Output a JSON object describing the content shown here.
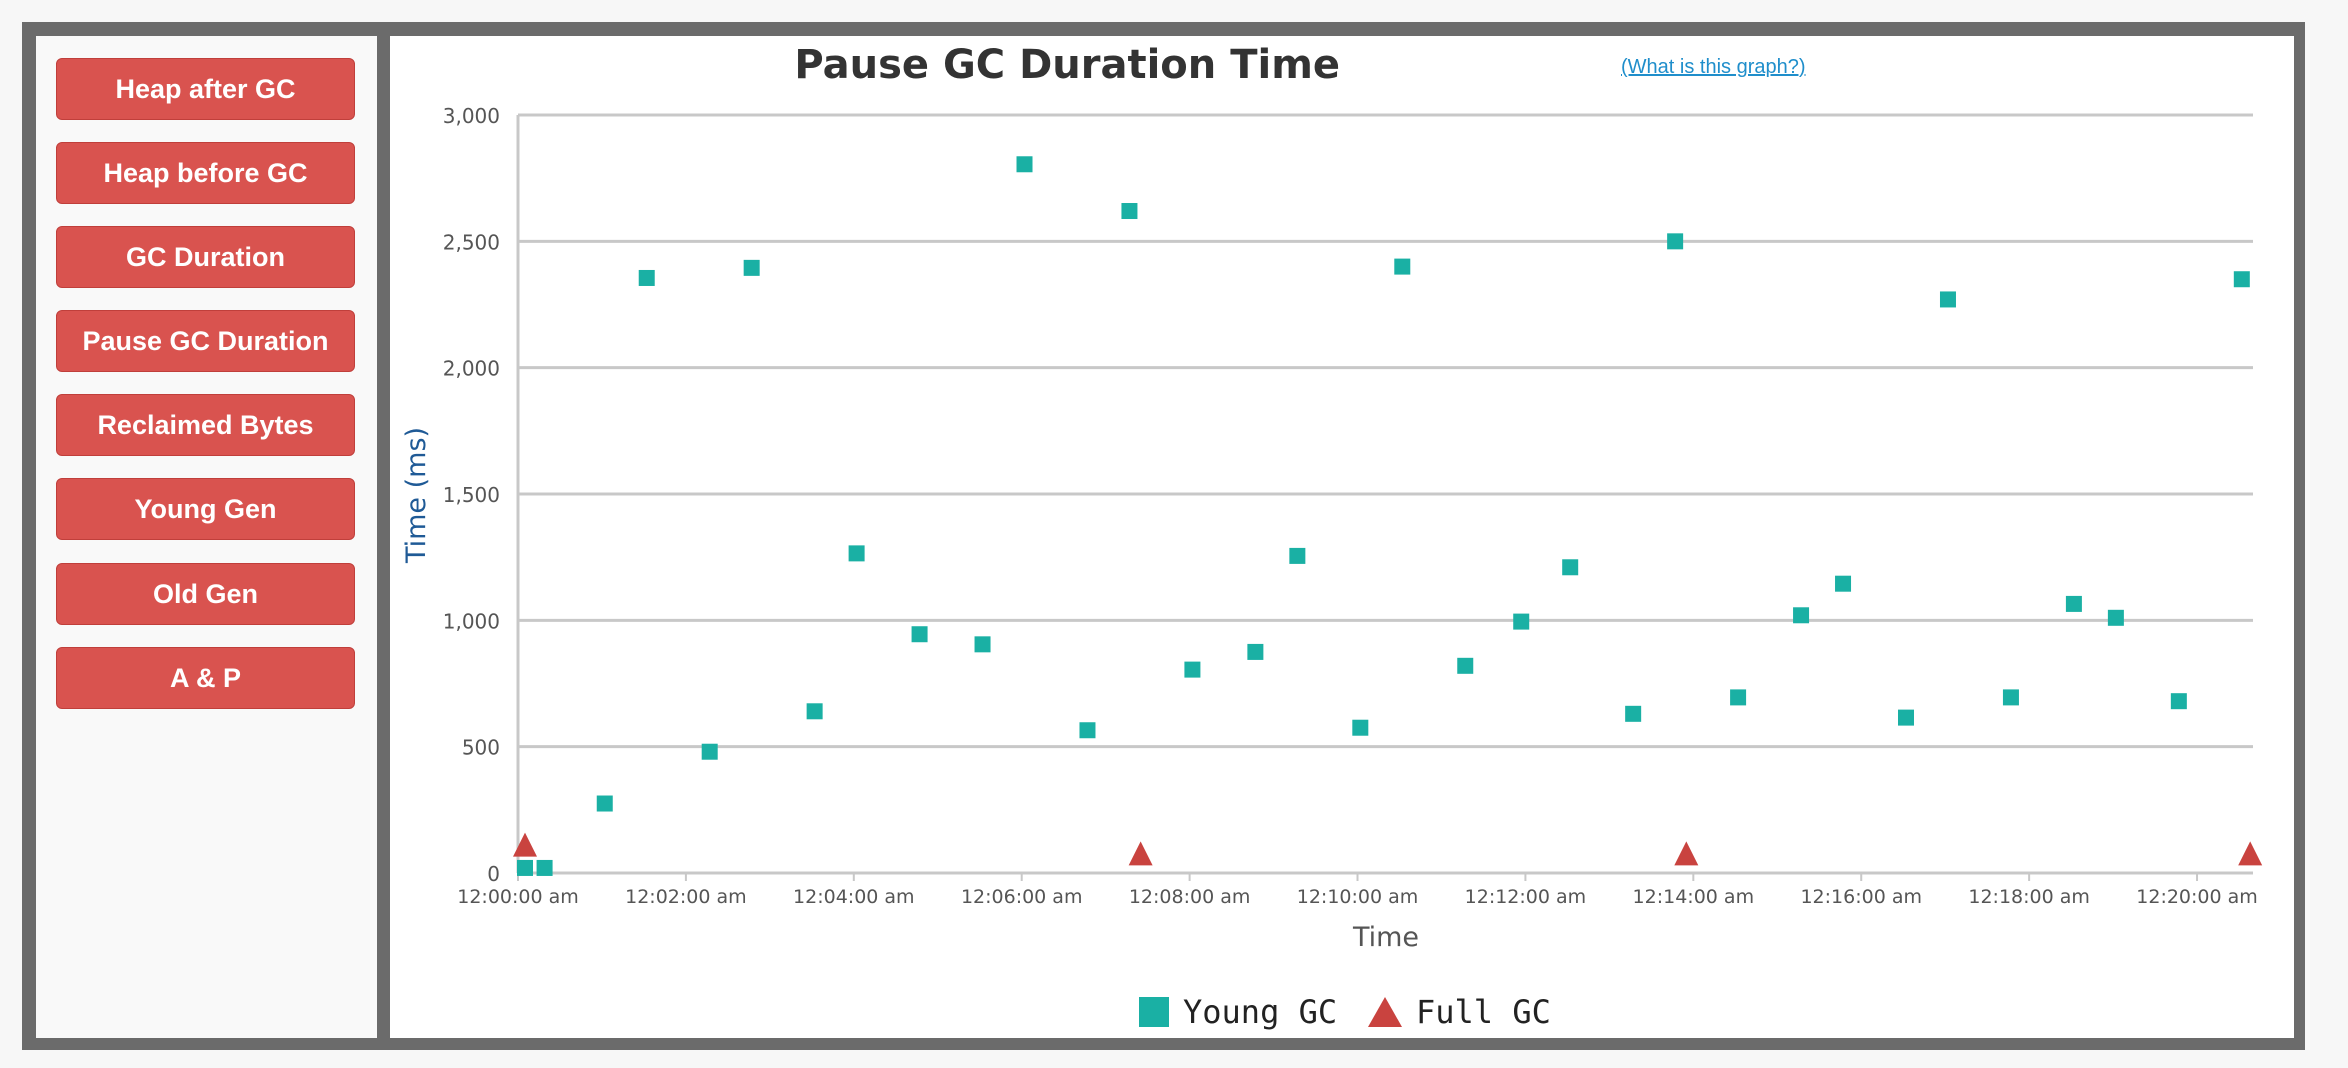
{
  "sidebar": {
    "buttons": [
      {
        "label": "Heap after GC"
      },
      {
        "label": "Heap before GC"
      },
      {
        "label": "GC Duration"
      },
      {
        "label": "Pause GC Duration"
      },
      {
        "label": "Reclaimed Bytes"
      },
      {
        "label": "Young Gen"
      },
      {
        "label": "Old Gen"
      },
      {
        "label": "A & P"
      }
    ]
  },
  "help_link": "(What is this graph?)",
  "colors": {
    "button": "#d9534f",
    "young": "#1ab0a4",
    "full": "#c9433f",
    "frame": "#6b6b6b"
  },
  "chart_data": {
    "type": "scatter",
    "title": "Pause GC Duration Time",
    "xlabel": "Time",
    "ylabel": "Time (ms)",
    "xlim": [
      "12:00:00 am",
      "12:20:40 am"
    ],
    "ylim": [
      0,
      3000
    ],
    "grid": true,
    "legend_position": "bottom",
    "x_ticks": [
      "12:00:00 am",
      "12:02:00 am",
      "12:04:00 am",
      "12:06:00 am",
      "12:08:00 am",
      "12:10:00 am",
      "12:12:00 am",
      "12:14:00 am",
      "12:16:00 am",
      "12:18:00 am",
      "12:20:00 am"
    ],
    "y_ticks": [
      "0",
      "500",
      "1,000",
      "1,500",
      "2,000",
      "2,500",
      "3,000"
    ],
    "series": [
      {
        "name": "Young GC",
        "marker": "square",
        "color": "#1ab0a4",
        "points": [
          [
            "12:00:05 am",
            20
          ],
          [
            "12:00:19 am",
            20
          ],
          [
            "12:01:02 am",
            275
          ],
          [
            "12:01:32 am",
            2355
          ],
          [
            "12:02:17 am",
            480
          ],
          [
            "12:02:47 am",
            2395
          ],
          [
            "12:03:32 am",
            640
          ],
          [
            "12:04:02 am",
            1265
          ],
          [
            "12:04:47 am",
            945
          ],
          [
            "12:05:32 am",
            905
          ],
          [
            "12:06:02 am",
            2805
          ],
          [
            "12:06:47 am",
            565
          ],
          [
            "12:07:17 am",
            2620
          ],
          [
            "12:08:02 am",
            805
          ],
          [
            "12:08:47 am",
            875
          ],
          [
            "12:09:17 am",
            1255
          ],
          [
            "12:10:02 am",
            575
          ],
          [
            "12:10:32 am",
            2400
          ],
          [
            "12:11:17 am",
            820
          ],
          [
            "12:11:57 am",
            995
          ],
          [
            "12:12:32 am",
            1210
          ],
          [
            "12:13:17 am",
            630
          ],
          [
            "12:13:47 am",
            2500
          ],
          [
            "12:14:32 am",
            695
          ],
          [
            "12:15:17 am",
            1020
          ],
          [
            "12:15:47 am",
            1145
          ],
          [
            "12:16:32 am",
            615
          ],
          [
            "12:17:02 am",
            2270
          ],
          [
            "12:17:47 am",
            695
          ],
          [
            "12:18:32 am",
            1065
          ],
          [
            "12:19:02 am",
            1010
          ],
          [
            "12:19:47 am",
            680
          ],
          [
            "12:20:32 am",
            2350
          ]
        ]
      },
      {
        "name": "Full GC",
        "marker": "triangle",
        "color": "#c9433f",
        "points": [
          [
            "12:00:05 am",
            65
          ],
          [
            "12:07:25 am",
            30
          ],
          [
            "12:13:55 am",
            30
          ],
          [
            "12:20:38 am",
            30
          ]
        ]
      }
    ]
  }
}
